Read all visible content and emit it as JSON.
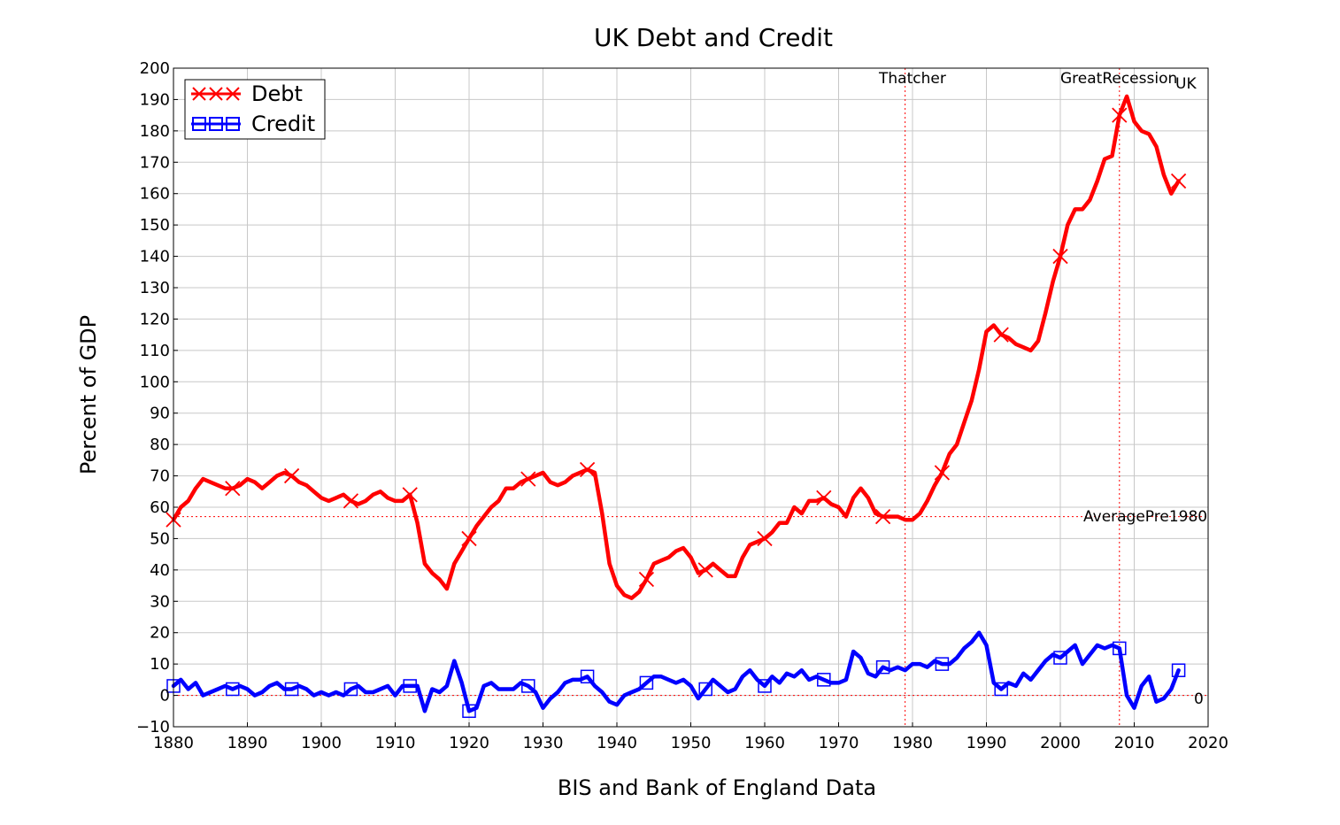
{
  "chart_data": {
    "type": "line",
    "title": "UK Debt and Credit",
    "xlabel": "BIS and Bank of England Data",
    "ylabel": "Percent of GDP",
    "xlim": [
      1880,
      2020
    ],
    "ylim": [
      -10,
      200
    ],
    "xticks": [
      1880,
      1890,
      1900,
      1910,
      1920,
      1930,
      1940,
      1950,
      1960,
      1970,
      1980,
      1990,
      2000,
      2010,
      2020
    ],
    "xtick_labels": [
      "1880",
      "1890",
      "1900",
      "1910",
      "1920",
      "1930",
      "1940",
      "1950",
      "1960",
      "1970",
      "1980",
      "1990",
      "2000",
      "2010",
      "2020"
    ],
    "yticks": [
      -10,
      0,
      10,
      20,
      30,
      40,
      50,
      60,
      70,
      80,
      90,
      100,
      110,
      120,
      130,
      140,
      150,
      160,
      170,
      180,
      190,
      200
    ],
    "ytick_labels": [
      "−10",
      "0",
      "10",
      "20",
      "30",
      "40",
      "50",
      "60",
      "70",
      "80",
      "90",
      "100",
      "110",
      "120",
      "130",
      "140",
      "150",
      "160",
      "170",
      "180",
      "190",
      "200"
    ],
    "grid": true,
    "legend_position": "top-left",
    "series": [
      {
        "name": "Debt",
        "color": "#ff0000",
        "marker": "x",
        "x": [
          1880,
          1881,
          1882,
          1883,
          1884,
          1885,
          1886,
          1887,
          1888,
          1889,
          1890,
          1891,
          1892,
          1893,
          1894,
          1895,
          1896,
          1897,
          1898,
          1899,
          1900,
          1901,
          1902,
          1903,
          1904,
          1905,
          1906,
          1907,
          1908,
          1909,
          1910,
          1911,
          1912,
          1913,
          1914,
          1915,
          1916,
          1917,
          1918,
          1919,
          1920,
          1921,
          1922,
          1923,
          1924,
          1925,
          1926,
          1927,
          1928,
          1929,
          1930,
          1931,
          1932,
          1933,
          1934,
          1935,
          1936,
          1937,
          1938,
          1939,
          1940,
          1941,
          1942,
          1943,
          1944,
          1945,
          1946,
          1947,
          1948,
          1949,
          1950,
          1951,
          1952,
          1953,
          1954,
          1955,
          1956,
          1957,
          1958,
          1959,
          1960,
          1961,
          1962,
          1963,
          1964,
          1965,
          1966,
          1967,
          1968,
          1969,
          1970,
          1971,
          1972,
          1973,
          1974,
          1975,
          1976,
          1977,
          1978,
          1979,
          1980,
          1981,
          1982,
          1983,
          1984,
          1985,
          1986,
          1987,
          1988,
          1989,
          1990,
          1991,
          1992,
          1993,
          1994,
          1995,
          1996,
          1997,
          1998,
          1999,
          2000,
          2001,
          2002,
          2003,
          2004,
          2005,
          2006,
          2007,
          2008,
          2009,
          2010,
          2011,
          2012,
          2013,
          2014,
          2015,
          2016
        ],
        "values": [
          56,
          60,
          62,
          66,
          69,
          68,
          67,
          66,
          66,
          67,
          69,
          68,
          66,
          68,
          70,
          71,
          70,
          68,
          67,
          65,
          63,
          62,
          63,
          64,
          62,
          61,
          62,
          64,
          65,
          63,
          62,
          62,
          64,
          55,
          42,
          39,
          37,
          34,
          42,
          46,
          50,
          54,
          57,
          60,
          62,
          66,
          66,
          68,
          69,
          70,
          71,
          68,
          67,
          68,
          70,
          71,
          72,
          71,
          58,
          42,
          35,
          32,
          31,
          33,
          37,
          42,
          43,
          44,
          46,
          47,
          44,
          39,
          40,
          42,
          40,
          38,
          38,
          44,
          48,
          49,
          50,
          52,
          55,
          55,
          60,
          58,
          62,
          62,
          63,
          61,
          60,
          57,
          63,
          66,
          63,
          58,
          57,
          57,
          57,
          56,
          56,
          58,
          62,
          67,
          71,
          77,
          80,
          87,
          94,
          104,
          116,
          118,
          115,
          114,
          112,
          111,
          110,
          113,
          122,
          132,
          140,
          150,
          155,
          155,
          158,
          164,
          171,
          172,
          185,
          191,
          183,
          180,
          179,
          175,
          166,
          160,
          164
        ]
      },
      {
        "name": "Credit",
        "color": "#0000ff",
        "marker": "square",
        "x": [
          1880,
          1881,
          1882,
          1883,
          1884,
          1885,
          1886,
          1887,
          1888,
          1889,
          1890,
          1891,
          1892,
          1893,
          1894,
          1895,
          1896,
          1897,
          1898,
          1899,
          1900,
          1901,
          1902,
          1903,
          1904,
          1905,
          1906,
          1907,
          1908,
          1909,
          1910,
          1911,
          1912,
          1913,
          1914,
          1915,
          1916,
          1917,
          1918,
          1919,
          1920,
          1921,
          1922,
          1923,
          1924,
          1925,
          1926,
          1927,
          1928,
          1929,
          1930,
          1931,
          1932,
          1933,
          1934,
          1935,
          1936,
          1937,
          1938,
          1939,
          1940,
          1941,
          1942,
          1943,
          1944,
          1945,
          1946,
          1947,
          1948,
          1949,
          1950,
          1951,
          1952,
          1953,
          1954,
          1955,
          1956,
          1957,
          1958,
          1959,
          1960,
          1961,
          1962,
          1963,
          1964,
          1965,
          1966,
          1967,
          1968,
          1969,
          1970,
          1971,
          1972,
          1973,
          1974,
          1975,
          1976,
          1977,
          1978,
          1979,
          1980,
          1981,
          1982,
          1983,
          1984,
          1985,
          1986,
          1987,
          1988,
          1989,
          1990,
          1991,
          1992,
          1993,
          1994,
          1995,
          1996,
          1997,
          1998,
          1999,
          2000,
          2001,
          2002,
          2003,
          2004,
          2005,
          2006,
          2007,
          2008,
          2009,
          2010,
          2011,
          2012,
          2013,
          2014,
          2015,
          2016
        ],
        "values": [
          3,
          5,
          2,
          4,
          0,
          1,
          2,
          3,
          2,
          3,
          2,
          0,
          1,
          3,
          4,
          2,
          2,
          3,
          2,
          0,
          1,
          0,
          1,
          0,
          2,
          3,
          1,
          1,
          2,
          3,
          0,
          3,
          3,
          3,
          -5,
          2,
          1,
          3,
          11,
          4,
          -5,
          -4,
          3,
          4,
          2,
          2,
          2,
          4,
          3,
          1,
          -4,
          -1,
          1,
          4,
          5,
          5,
          6,
          3,
          1,
          -2,
          -3,
          0,
          1,
          2,
          4,
          6,
          6,
          5,
          4,
          5,
          3,
          -1,
          2,
          5,
          3,
          1,
          2,
          6,
          8,
          5,
          3,
          6,
          4,
          7,
          6,
          8,
          5,
          6,
          5,
          4,
          4,
          5,
          14,
          12,
          7,
          6,
          9,
          8,
          9,
          8,
          10,
          10,
          9,
          11,
          10,
          10,
          12,
          15,
          17,
          20,
          16,
          4,
          2,
          4,
          3,
          7,
          5,
          8,
          11,
          13,
          12,
          14,
          16,
          10,
          13,
          16,
          15,
          16,
          15,
          0,
          -4,
          3,
          6,
          -2,
          -1,
          2,
          8
        ]
      }
    ],
    "reference_lines": [
      {
        "orientation": "vertical",
        "x": 1979,
        "label": "Thatcher"
      },
      {
        "orientation": "vertical",
        "x": 2008,
        "label": "GreatRecession"
      },
      {
        "orientation": "horizontal",
        "y": 57,
        "label": "AveragePre1980"
      },
      {
        "orientation": "horizontal",
        "y": 0,
        "label": "0"
      }
    ],
    "annotations": [
      "UK"
    ]
  }
}
